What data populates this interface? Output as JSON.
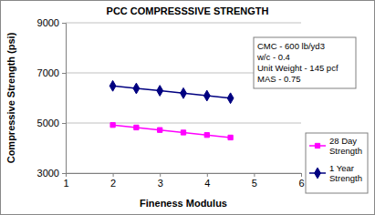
{
  "chart_data": {
    "type": "line",
    "title": "PCC COMPRESSSIVE STRENGTH",
    "x_label": "Fineness Modulus",
    "y_label": "Compressive Strength (psi)",
    "x": [
      2,
      2.5,
      3,
      3.5,
      4,
      4.5
    ],
    "series": [
      {
        "name": "28 Day Strength",
        "color": "#ff00ff",
        "marker": "square",
        "line_style": "solid",
        "values": [
          4920,
          4820,
          4720,
          4620,
          4520,
          4420
        ]
      },
      {
        "name": "1 Year Strength",
        "color": "#000080",
        "marker": "diamond",
        "line_style": "solid",
        "values": [
          6480,
          6380,
          6290,
          6190,
          6090,
          5990
        ]
      }
    ],
    "xlim": [
      1,
      6
    ],
    "xticks": [
      1,
      2,
      3,
      4,
      5,
      6
    ],
    "ylim": [
      3000,
      9000
    ],
    "yticks": [
      3000,
      5000,
      7000,
      9000
    ],
    "grid": true,
    "legend": "right",
    "annotations": [
      "CMC - 600 lb/yd3",
      "w/c - 0.4",
      "Unit Weight - 145 pcf",
      "MAS - 0.75"
    ]
  }
}
